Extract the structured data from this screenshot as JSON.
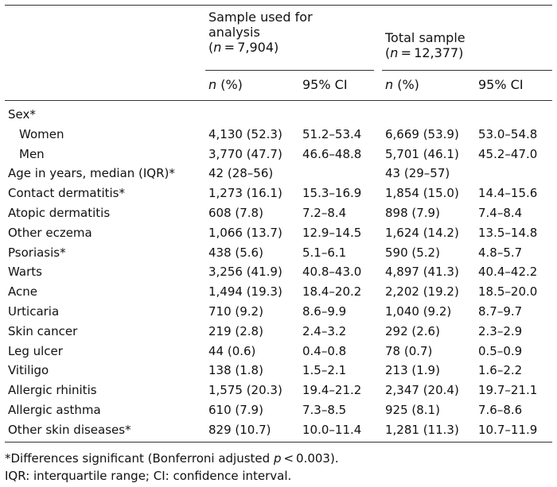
{
  "header": {
    "group1": [
      "Sample used for",
      "analysis",
      "(n = 7,904)"
    ],
    "group2": [
      "Total sample",
      "(n = 12,377)"
    ],
    "col_n": "n (%)",
    "col_ci": "95% CI"
  },
  "rows": [
    {
      "label": "Sex*",
      "indent": false,
      "c1": "",
      "c2": "",
      "c3": "",
      "c4": ""
    },
    {
      "label": "Women",
      "indent": true,
      "c1": "4,130 (52.3)",
      "c2": "51.2–53.4",
      "c3": "6,669 (53.9)",
      "c4": "53.0–54.8"
    },
    {
      "label": "Men",
      "indent": true,
      "c1": "3,770 (47.7)",
      "c2": "46.6–48.8",
      "c3": "5,701 (46.1)",
      "c4": "45.2–47.0"
    },
    {
      "label": "Age in years, median (IQR)*",
      "indent": false,
      "c1": "42 (28–56)",
      "c2": "",
      "c3": "43 (29–57)",
      "c4": ""
    },
    {
      "label": "Contact dermatitis*",
      "indent": false,
      "c1": "1,273 (16.1)",
      "c2": "15.3–16.9",
      "c3": "1,854 (15.0)",
      "c4": "14.4–15.6"
    },
    {
      "label": "Atopic dermatitis",
      "indent": false,
      "c1": "608 (7.8)",
      "c2": "7.2–8.4",
      "c3": "898 (7.9)",
      "c4": "7.4–8.4"
    },
    {
      "label": "Other eczema",
      "indent": false,
      "c1": "1,066 (13.7)",
      "c2": "12.9–14.5",
      "c3": "1,624 (14.2)",
      "c4": "13.5–14.8"
    },
    {
      "label": "Psoriasis*",
      "indent": false,
      "c1": "438 (5.6)",
      "c2": "5.1–6.1",
      "c3": "590 (5.2)",
      "c4": "4.8–5.7"
    },
    {
      "label": "Warts",
      "indent": false,
      "c1": "3,256 (41.9)",
      "c2": "40.8–43.0",
      "c3": "4,897 (41.3)",
      "c4": "40.4–42.2"
    },
    {
      "label": "Acne",
      "indent": false,
      "c1": "1,494 (19.3)",
      "c2": "18.4–20.2",
      "c3": "2,202 (19.2)",
      "c4": "18.5–20.0"
    },
    {
      "label": "Urticaria",
      "indent": false,
      "c1": "710 (9.2)",
      "c2": "8.6–9.9",
      "c3": "1,040 (9.2)",
      "c4": "8.7–9.7"
    },
    {
      "label": "Skin cancer",
      "indent": false,
      "c1": "219 (2.8)",
      "c2": "2.4–3.2",
      "c3": "292 (2.6)",
      "c4": "2.3–2.9"
    },
    {
      "label": "Leg ulcer",
      "indent": false,
      "c1": "44 (0.6)",
      "c2": "0.4–0.8",
      "c3": "78 (0.7)",
      "c4": "0.5–0.9"
    },
    {
      "label": "Vitiligo",
      "indent": false,
      "c1": "138 (1.8)",
      "c2": "1.5–2.1",
      "c3": "213 (1.9)",
      "c4": "1.6–2.2"
    },
    {
      "label": "Allergic rhinitis",
      "indent": false,
      "c1": "1,575 (20.3)",
      "c2": "19.4–21.2",
      "c3": "2,347 (20.4)",
      "c4": "19.7–21.1"
    },
    {
      "label": "Allergic asthma",
      "indent": false,
      "c1": "610 (7.9)",
      "c2": "7.3–8.5",
      "c3": "925 (8.1)",
      "c4": "7.6–8.6"
    },
    {
      "label": "Other skin diseases*",
      "indent": false,
      "c1": "829 (10.7)",
      "c2": "10.0–11.4",
      "c3": "1,281 (11.3)",
      "c4": "10.7–11.9"
    }
  ],
  "footnotes": [
    "*Differences significant (Bonferroni adjusted p < 0.003).",
    "IQR: interquartile range; CI: confidence interval."
  ]
}
